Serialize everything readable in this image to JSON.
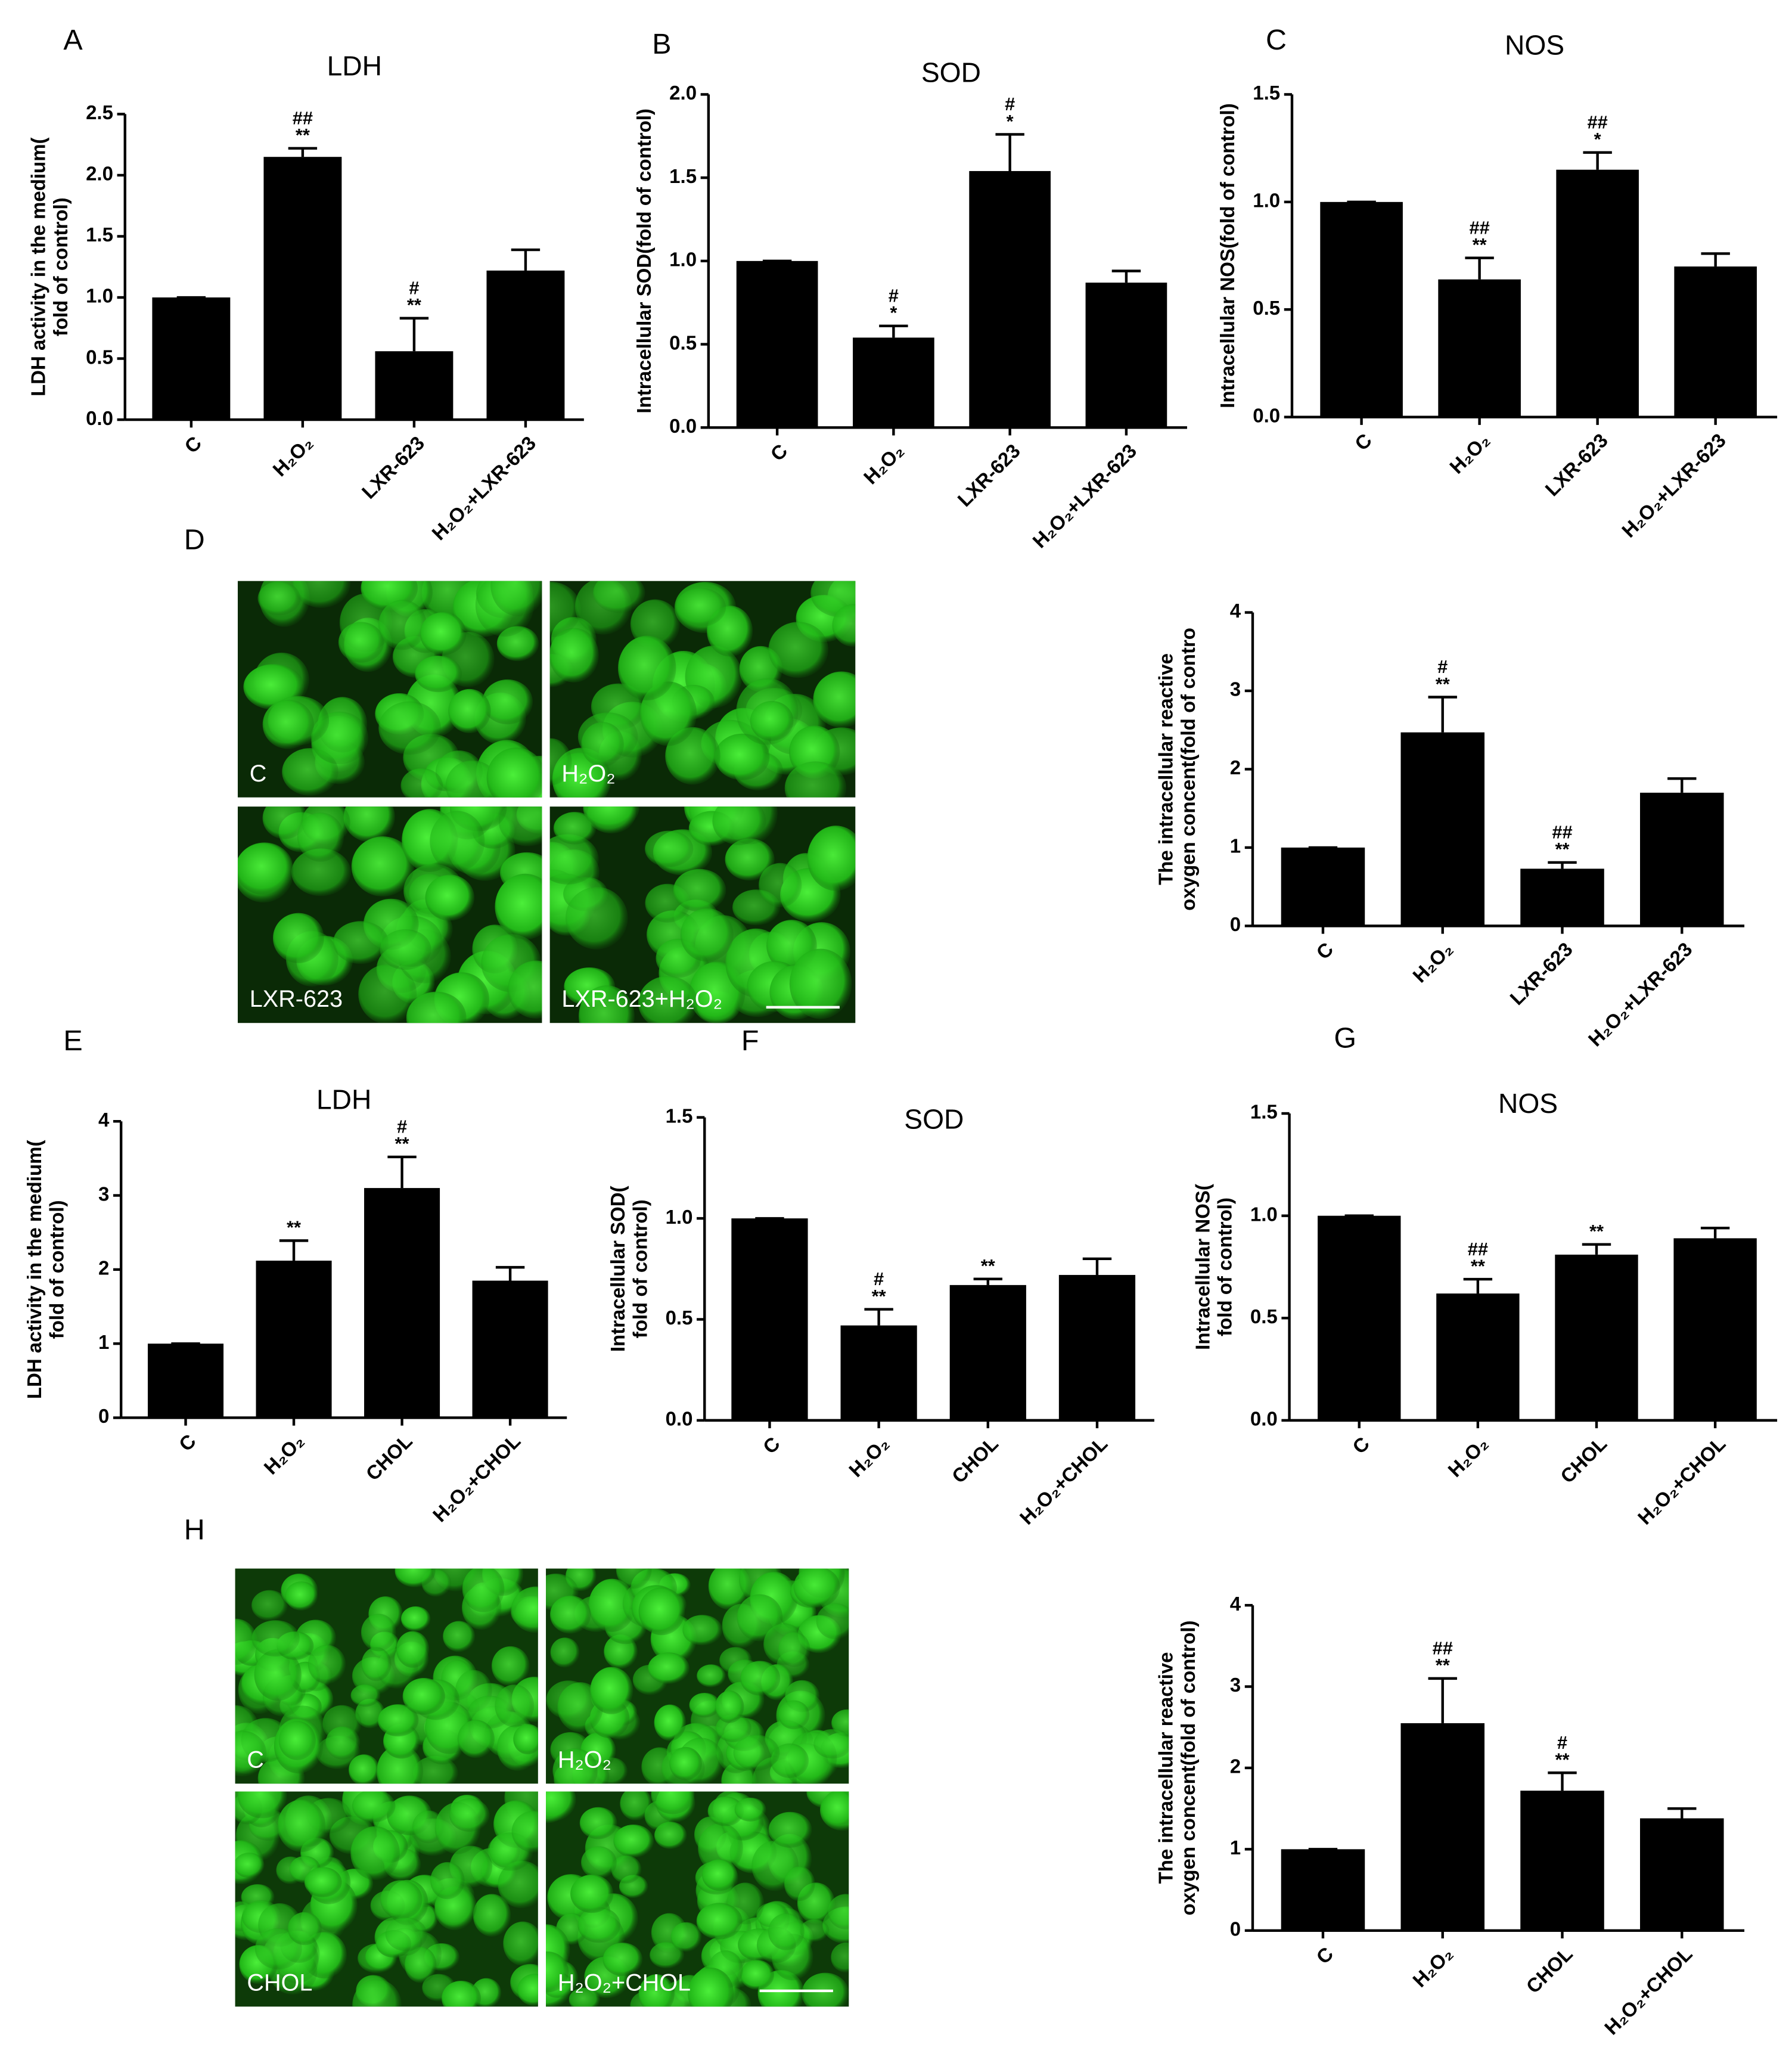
{
  "chart_data": [
    {
      "type": "bar",
      "panel": "A",
      "title": "LDH",
      "ylabel": [
        "LDH activity in the medium(",
        "fold of control)"
      ],
      "categories": [
        "C",
        "H₂O₂",
        "LXR-623",
        "H₂O₂+LXR-623"
      ],
      "values": [
        1,
        2.15,
        0.56,
        1.22
      ],
      "errors": [
        0,
        0.07,
        0.27,
        0.17
      ],
      "sig_hash": [
        null,
        "##",
        "#",
        null
      ],
      "sig_star": [
        null,
        "**",
        "**",
        null
      ],
      "ylim": [
        0,
        2.5
      ],
      "yticks": [
        {
          "value": 0,
          "label": "0.0"
        },
        0.5,
        {
          "value": 1,
          "label": "1.0"
        },
        1.5,
        {
          "value": 2,
          "label": "2.0"
        },
        2.5
      ],
      "color": "#000000"
    },
    {
      "type": "bar",
      "panel": "B",
      "title": "SOD",
      "ylabel": [
        "Intracellular SOD(fold of control)"
      ],
      "categories": [
        "C",
        "H₂O₂",
        "LXR-623",
        "H₂O₂+LXR-623"
      ],
      "values": [
        1,
        0.54,
        1.54,
        0.87
      ],
      "errors": [
        0,
        0.07,
        0.22,
        0.07
      ],
      "sig_hash": [
        null,
        "#",
        "#",
        null
      ],
      "sig_star": [
        null,
        "*",
        "*",
        null
      ],
      "ylim": [
        0,
        2
      ],
      "yticks": [
        {
          "value": 0,
          "label": "0.0"
        },
        0.5,
        {
          "value": 1,
          "label": "1.0"
        },
        1.5,
        {
          "value": 2,
          "label": "2.0"
        }
      ],
      "color": "#000000"
    },
    {
      "type": "bar",
      "panel": "C",
      "title": "NOS",
      "ylabel": [
        "Intracellular NOS(fold of control)"
      ],
      "categories": [
        "C",
        "H₂O₂",
        "LXR-623",
        "H₂O₂+LXR-623"
      ],
      "values": [
        1,
        0.64,
        1.15,
        0.7
      ],
      "errors": [
        0,
        0.1,
        0.08,
        0.06
      ],
      "sig_hash": [
        null,
        "##",
        "##",
        null
      ],
      "sig_star": [
        null,
        "**",
        "*",
        null
      ],
      "ylim": [
        0,
        1.5
      ],
      "yticks": [
        {
          "value": 0,
          "label": "0.0"
        },
        0.5,
        {
          "value": 1,
          "label": "1.0"
        },
        1.5
      ],
      "color": "#000000"
    },
    {
      "type": "bar",
      "ylabel": [
        "The intracellular  reactive",
        "oxygen concent(fold of contro"
      ],
      "categories": [
        "C",
        "H₂O₂",
        "LXR-623",
        "H₂O₂+LXR-623"
      ],
      "values": [
        1,
        2.47,
        0.73,
        1.7
      ],
      "errors": [
        0,
        0.45,
        0.08,
        0.18
      ],
      "sig_hash": [
        null,
        "#",
        "##",
        null
      ],
      "sig_star": [
        null,
        "**",
        "**",
        null
      ],
      "ylim": [
        0,
        4
      ],
      "yticks": [
        0,
        1,
        2,
        3,
        4
      ],
      "color": "#000000"
    },
    {
      "type": "bar",
      "panel": "E",
      "title": "LDH",
      "ylabel": [
        "LDH activity in the medium(",
        "fold of control)"
      ],
      "categories": [
        "C",
        "H₂O₂",
        "CHOL",
        "H₂O₂+CHOL"
      ],
      "values": [
        1,
        2.12,
        3.1,
        1.85
      ],
      "errors": [
        0,
        0.27,
        0.42,
        0.18
      ],
      "sig_hash": [
        null,
        null,
        "#",
        null
      ],
      "sig_star": [
        null,
        "**",
        "**",
        null
      ],
      "ylim": [
        0,
        4
      ],
      "yticks": [
        0,
        1,
        2,
        3,
        4
      ],
      "color": "#000000"
    },
    {
      "type": "bar",
      "panel": "F",
      "title": "SOD",
      "ylabel": [
        "Intracellular SOD(",
        "fold of control)"
      ],
      "categories": [
        "C",
        "H₂O₂",
        "CHOL",
        "H₂O₂+CHOL"
      ],
      "values": [
        1,
        0.47,
        0.67,
        0.72
      ],
      "errors": [
        0,
        0.08,
        0.03,
        0.08
      ],
      "sig_hash": [
        null,
        "#",
        null,
        null
      ],
      "sig_star": [
        null,
        "**",
        "**",
        null
      ],
      "ylim": [
        0,
        1.5
      ],
      "yticks": [
        {
          "value": 0,
          "label": "0.0"
        },
        0.5,
        {
          "value": 1,
          "label": "1.0"
        },
        1.5
      ],
      "color": "#000000"
    },
    {
      "type": "bar",
      "panel": "G",
      "title": "NOS",
      "ylabel": [
        "Intracellular NOS(",
        "fold of control)"
      ],
      "categories": [
        "C",
        "H₂O₂",
        "CHOL",
        "H₂O₂+CHOL"
      ],
      "values": [
        1,
        0.62,
        0.81,
        0.89
      ],
      "errors": [
        0,
        0.07,
        0.05,
        0.05
      ],
      "sig_hash": [
        null,
        "##",
        null,
        null
      ],
      "sig_star": [
        null,
        "**",
        "**",
        null
      ],
      "ylim": [
        0,
        1.5
      ],
      "yticks": [
        {
          "value": 0,
          "label": "0.0"
        },
        0.5,
        {
          "value": 1,
          "label": "1.0"
        },
        1.5
      ],
      "color": "#000000"
    },
    {
      "type": "bar",
      "ylabel": [
        "The intracellular  reactive",
        "oxygen concent(fold of control)"
      ],
      "categories": [
        "C",
        "H₂O₂",
        "CHOL",
        "H₂O₂+CHOL"
      ],
      "values": [
        1,
        2.55,
        1.72,
        1.38
      ],
      "errors": [
        0,
        0.55,
        0.22,
        0.12
      ],
      "sig_hash": [
        null,
        "##",
        "#",
        null
      ],
      "sig_star": [
        null,
        "**",
        "**",
        null
      ],
      "ylim": [
        0,
        4
      ],
      "yticks": [
        0,
        1,
        2,
        3,
        4
      ],
      "color": "#000000"
    }
  ],
  "micrographs": [
    {
      "panel": "D",
      "labels": [
        "C",
        "H₂O₂",
        "LXR-623",
        "LXR-623+H₂O₂"
      ]
    },
    {
      "panel": "H",
      "labels": [
        "C",
        "H₂O₂",
        "CHOL",
        "H₂O₂+CHOL"
      ]
    }
  ]
}
